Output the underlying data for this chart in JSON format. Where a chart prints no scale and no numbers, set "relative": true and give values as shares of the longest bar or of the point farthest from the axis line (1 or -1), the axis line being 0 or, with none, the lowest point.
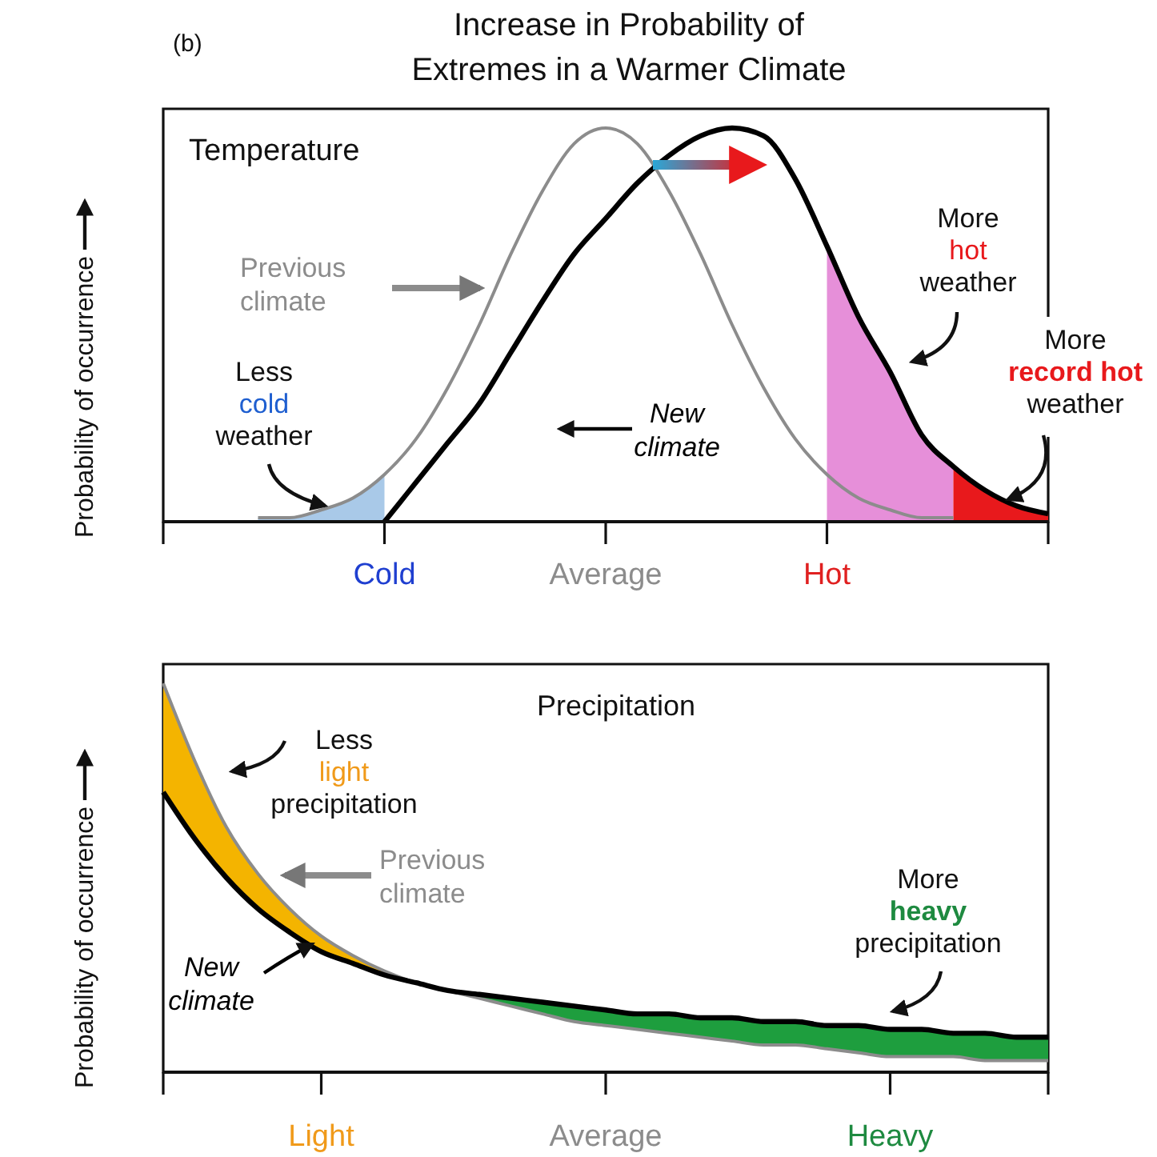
{
  "chart_data": [
    {
      "type": "line",
      "title": "Increase in Probability of Extremes in a Warmer Climate",
      "ylabel": "Probability of occurrence",
      "relative": true,
      "categories": [
        null,
        null,
        null,
        null,
        null,
        null,
        null,
        "Cold",
        null,
        null,
        null,
        null,
        null,
        null,
        "Average",
        null,
        null,
        null,
        null,
        null,
        null,
        "Hot",
        null,
        null,
        null,
        null,
        null,
        null,
        null
      ],
      "series": [
        {
          "type": "area",
          "color": "#a9c9e8",
          "values": [
            null,
            null,
            null,
            0.01,
            0.01,
            0.03,
            0.06,
            0.12,
            null,
            null,
            null,
            null,
            null,
            null,
            null,
            null,
            null,
            null,
            null,
            null,
            null,
            null,
            null,
            null,
            null,
            null,
            null,
            null,
            null
          ]
        },
        {
          "type": "area",
          "color": "#e68fd9",
          "values": [
            null,
            null,
            null,
            null,
            null,
            null,
            null,
            null,
            null,
            null,
            null,
            null,
            null,
            null,
            null,
            null,
            null,
            null,
            null,
            null,
            null,
            0.7,
            0.52,
            0.38,
            0.22,
            0.14,
            null,
            null,
            null
          ]
        },
        {
          "type": "area",
          "color": "#e8191c",
          "values": [
            null,
            null,
            null,
            null,
            null,
            null,
            null,
            null,
            null,
            null,
            null,
            null,
            null,
            null,
            null,
            null,
            null,
            null,
            null,
            null,
            null,
            null,
            null,
            null,
            null,
            0.14,
            0.08,
            0.04,
            0.02
          ]
        },
        {
          "name": "Previous climate",
          "color": "#8c8c8c",
          "values": [
            null,
            null,
            null,
            0.01,
            0.01,
            0.03,
            0.06,
            0.12,
            0.21,
            0.34,
            0.5,
            0.68,
            0.84,
            0.96,
            1,
            0.96,
            0.84,
            0.68,
            0.5,
            0.34,
            0.21,
            0.12,
            0.06,
            0.03,
            0.01,
            0.01,
            null,
            null,
            null
          ]
        },
        {
          "name": "New climate",
          "color": "#000000",
          "values": [
            null,
            null,
            null,
            null,
            null,
            null,
            null,
            0,
            0.1,
            0.2,
            0.3,
            0.43,
            0.56,
            0.68,
            0.77,
            0.86,
            0.93,
            0.98,
            1,
            0.98,
            0.87,
            0.7,
            0.52,
            0.38,
            0.22,
            0.14,
            0.08,
            0.04,
            0.02
          ]
        }
      ],
      "annotations": [
        "(b)",
        "Temperature",
        "Less cold weather",
        "More hot weather",
        "More record hot weather"
      ]
    },
    {
      "type": "line",
      "title": "Precipitation",
      "ylabel": "Probability of occurrence",
      "relative": true,
      "categories": [
        null,
        null,
        null,
        null,
        null,
        "Light",
        null,
        null,
        null,
        null,
        null,
        null,
        null,
        null,
        "Average",
        null,
        null,
        null,
        null,
        null,
        null,
        null,
        null,
        "Heavy",
        null,
        null,
        null,
        null,
        null
      ],
      "series": [
        {
          "name": "Previous climate",
          "color": "#8c8c8c",
          "values": [
            1,
            0.8,
            0.63,
            0.51,
            0.42,
            0.35,
            0.3,
            0.26,
            0.23,
            0.21,
            0.19,
            0.17,
            0.15,
            0.13,
            0.12,
            0.11,
            0.1,
            0.09,
            0.08,
            0.07,
            0.07,
            0.06,
            0.05,
            0.04,
            0.04,
            0.04,
            0.03,
            0.03,
            0.03
          ],
          "lower": [
            0.72,
            0.6,
            0.5,
            0.42,
            0.36,
            0.31,
            0.28,
            0.25,
            0.23,
            0.21,
            null,
            null,
            null,
            null,
            null,
            null,
            null,
            null,
            null,
            null,
            null,
            null,
            null,
            null,
            null,
            null,
            null,
            null,
            null
          ],
          "upper": [
            1,
            0.8,
            0.63,
            0.51,
            0.42,
            0.35,
            0.3,
            0.26,
            0.23,
            0.21,
            null,
            null,
            null,
            null,
            null,
            null,
            null,
            null,
            null,
            null,
            null,
            null,
            null,
            null,
            null,
            null,
            null,
            null,
            null
          ]
        },
        {
          "name": "New climate",
          "color": "#000000",
          "values": [
            0.72,
            0.6,
            0.5,
            0.42,
            0.36,
            0.31,
            0.28,
            0.25,
            0.23,
            0.21,
            0.2,
            0.19,
            0.18,
            0.17,
            0.16,
            0.15,
            0.15,
            0.14,
            0.14,
            0.13,
            0.13,
            0.12,
            0.12,
            0.11,
            0.11,
            0.1,
            0.1,
            0.09,
            0.09
          ],
          "lower": [
            null,
            null,
            null,
            null,
            null,
            null,
            null,
            null,
            null,
            0.21,
            0.19,
            0.17,
            0.15,
            0.13,
            0.12,
            0.11,
            0.1,
            0.09,
            0.08,
            0.07,
            0.07,
            0.06,
            0.05,
            0.04,
            0.04,
            0.04,
            0.03,
            0.03,
            0.03
          ],
          "upper": [
            null,
            null,
            null,
            null,
            null,
            null,
            null,
            null,
            null,
            0.21,
            0.2,
            0.19,
            0.18,
            0.17,
            0.16,
            0.15,
            0.15,
            0.14,
            0.14,
            0.13,
            0.13,
            0.12,
            0.12,
            0.11,
            0.11,
            0.1,
            0.1,
            0.09,
            0.09
          ]
        }
      ],
      "annotations": [
        "Less light precipitation",
        "More heavy precipitation"
      ]
    }
  ]
}
